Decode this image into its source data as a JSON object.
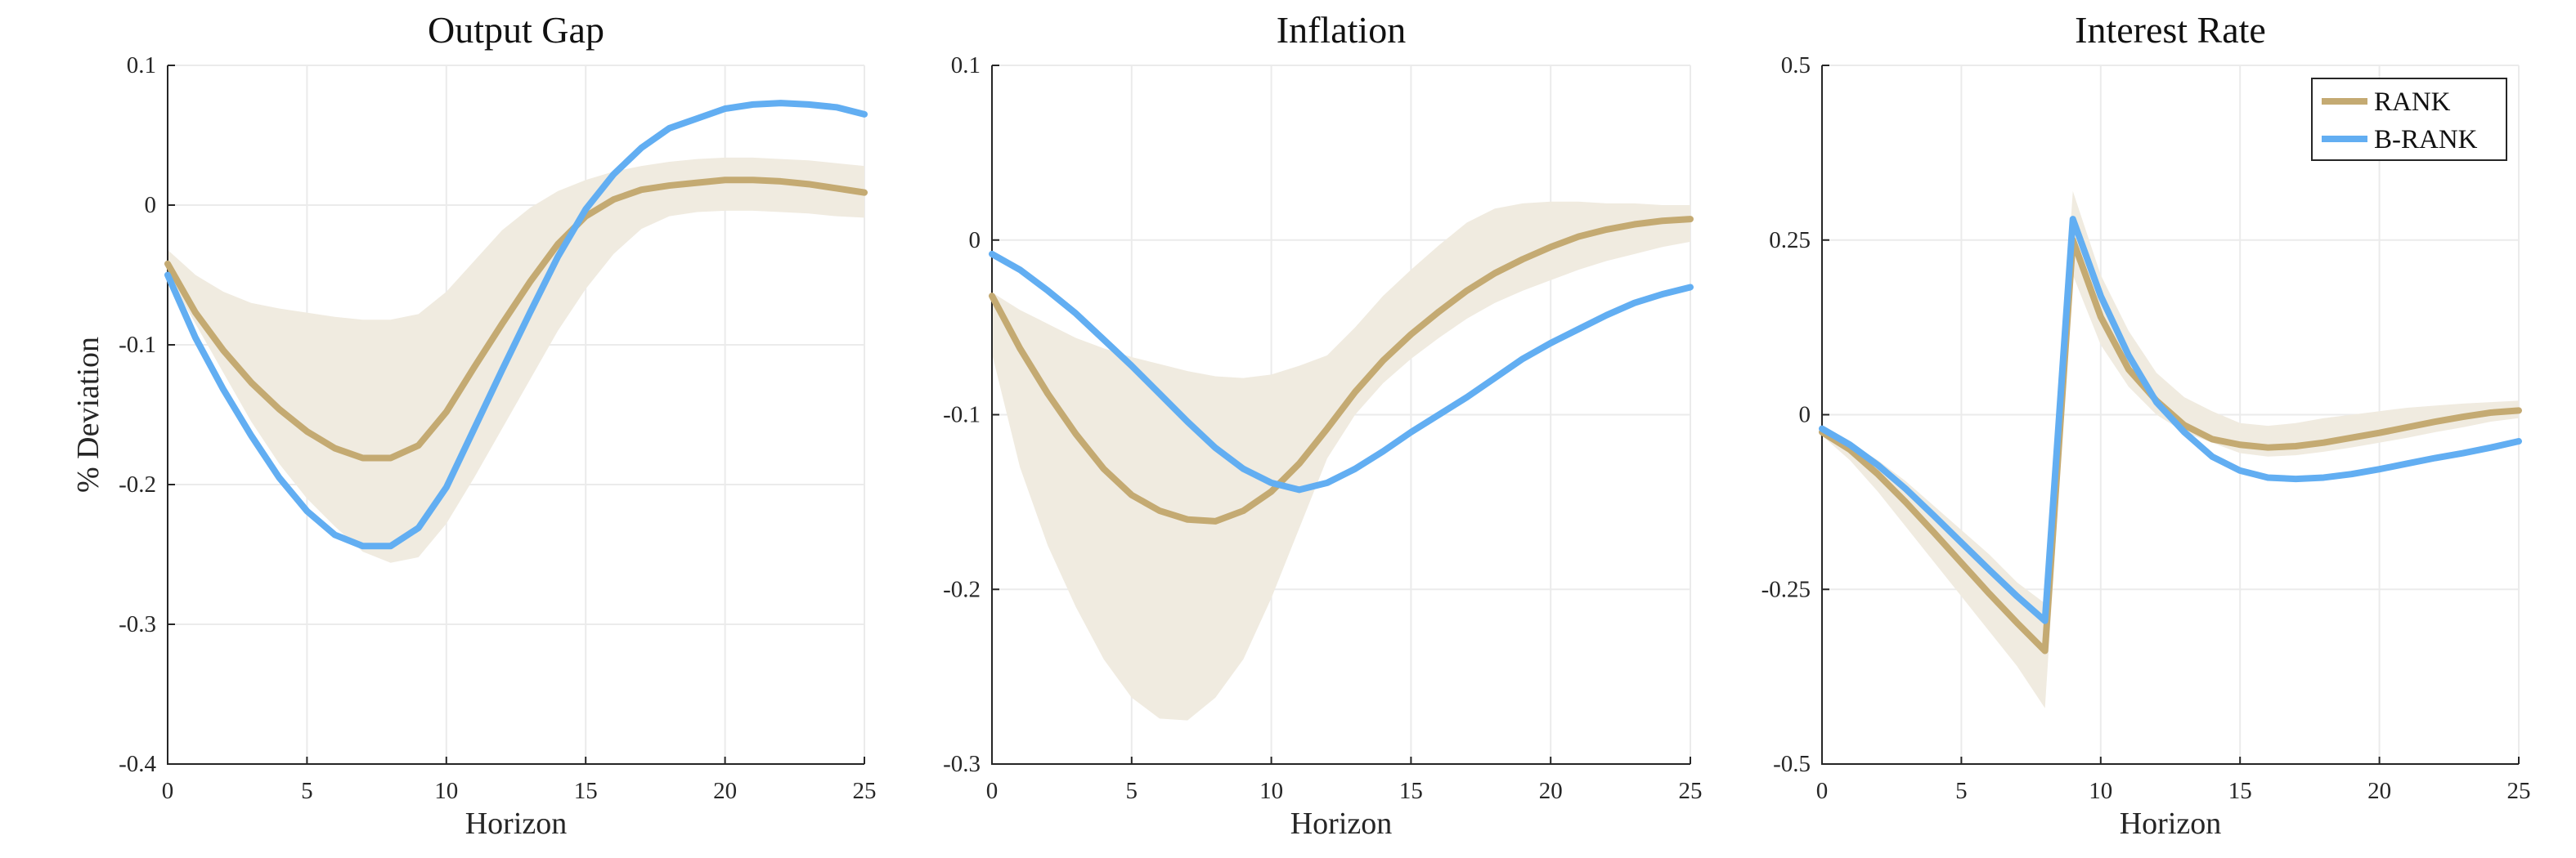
{
  "colors": {
    "rank": "#c4aa72",
    "brank": "#62aef2",
    "band": "#f0ebe0"
  },
  "legend": {
    "items": [
      "RANK",
      "B-RANK"
    ]
  },
  "chart_data": [
    {
      "type": "line",
      "title": "Output Gap",
      "xlabel": "Horizon",
      "ylabel": "% Deviation",
      "xlim": [
        0,
        25
      ],
      "ylim": [
        -0.4,
        0.1
      ],
      "xticks": [
        0,
        5,
        10,
        15,
        20,
        25
      ],
      "yticks": [
        -0.4,
        -0.3,
        -0.2,
        -0.1,
        0,
        0.1
      ],
      "ytick_labels": [
        "-0.4",
        "-0.3",
        "-0.2",
        "-0.1",
        "0",
        "0.1"
      ],
      "grid": true,
      "x": [
        0,
        1,
        2,
        3,
        4,
        5,
        6,
        7,
        8,
        9,
        10,
        11,
        12,
        13,
        14,
        15,
        16,
        17,
        18,
        19,
        20,
        21,
        22,
        23,
        24,
        25
      ],
      "band": {
        "upper": [
          -0.032,
          -0.05,
          -0.062,
          -0.07,
          -0.074,
          -0.077,
          -0.08,
          -0.082,
          -0.082,
          -0.078,
          -0.062,
          -0.04,
          -0.018,
          -0.002,
          0.01,
          0.018,
          0.024,
          0.028,
          0.031,
          0.033,
          0.034,
          0.034,
          0.033,
          0.032,
          0.03,
          0.028
        ],
        "lower": [
          -0.05,
          -0.085,
          -0.12,
          -0.155,
          -0.185,
          -0.21,
          -0.23,
          -0.248,
          -0.256,
          -0.252,
          -0.228,
          -0.195,
          -0.16,
          -0.125,
          -0.09,
          -0.06,
          -0.035,
          -0.017,
          -0.008,
          -0.005,
          -0.004,
          -0.004,
          -0.005,
          -0.006,
          -0.008,
          -0.009
        ]
      },
      "series": [
        {
          "name": "RANK",
          "values": [
            -0.042,
            -0.077,
            -0.104,
            -0.127,
            -0.146,
            -0.162,
            -0.174,
            -0.181,
            -0.181,
            -0.172,
            -0.148,
            -0.116,
            -0.085,
            -0.055,
            -0.028,
            -0.008,
            0.004,
            0.011,
            0.014,
            0.016,
            0.018,
            0.018,
            0.017,
            0.015,
            0.012,
            0.009
          ]
        },
        {
          "name": "B-RANK",
          "values": [
            -0.05,
            -0.095,
            -0.132,
            -0.165,
            -0.195,
            -0.219,
            -0.236,
            -0.244,
            -0.244,
            -0.231,
            -0.202,
            -0.16,
            -0.118,
            -0.077,
            -0.037,
            -0.003,
            0.022,
            0.041,
            0.055,
            0.062,
            0.069,
            0.072,
            0.073,
            0.072,
            0.07,
            0.065
          ]
        }
      ]
    },
    {
      "type": "line",
      "title": "Inflation",
      "xlabel": "Horizon",
      "ylabel": "",
      "xlim": [
        0,
        25
      ],
      "ylim": [
        -0.3,
        0.1
      ],
      "xticks": [
        0,
        5,
        10,
        15,
        20,
        25
      ],
      "yticks": [
        -0.3,
        -0.2,
        -0.1,
        0,
        0.1
      ],
      "ytick_labels": [
        "-0.3",
        "-0.2",
        "-0.1",
        "0",
        "0.1"
      ],
      "grid": true,
      "x": [
        0,
        1,
        2,
        3,
        4,
        5,
        6,
        7,
        8,
        9,
        10,
        11,
        12,
        13,
        14,
        15,
        16,
        17,
        18,
        19,
        20,
        21,
        22,
        23,
        24,
        25
      ],
      "band": {
        "upper": [
          -0.03,
          -0.04,
          -0.048,
          -0.056,
          -0.062,
          -0.067,
          -0.071,
          -0.075,
          -0.078,
          -0.079,
          -0.077,
          -0.072,
          -0.066,
          -0.05,
          -0.032,
          -0.017,
          -0.003,
          0.01,
          0.018,
          0.021,
          0.022,
          0.022,
          0.021,
          0.021,
          0.02,
          0.02
        ],
        "lower": [
          -0.065,
          -0.13,
          -0.175,
          -0.21,
          -0.24,
          -0.262,
          -0.274,
          -0.275,
          -0.262,
          -0.24,
          -0.205,
          -0.165,
          -0.125,
          -0.1,
          -0.082,
          -0.068,
          -0.056,
          -0.045,
          -0.036,
          -0.029,
          -0.023,
          -0.017,
          -0.012,
          -0.008,
          -0.004,
          -0.001
        ]
      },
      "series": [
        {
          "name": "RANK",
          "values": [
            -0.032,
            -0.062,
            -0.088,
            -0.111,
            -0.131,
            -0.146,
            -0.155,
            -0.16,
            -0.161,
            -0.155,
            -0.144,
            -0.128,
            -0.108,
            -0.087,
            -0.069,
            -0.054,
            -0.041,
            -0.029,
            -0.019,
            -0.011,
            -0.004,
            0.002,
            0.006,
            0.009,
            0.011,
            0.012
          ]
        },
        {
          "name": "B-RANK",
          "values": [
            -0.008,
            -0.017,
            -0.029,
            -0.042,
            -0.057,
            -0.072,
            -0.088,
            -0.104,
            -0.119,
            -0.131,
            -0.139,
            -0.143,
            -0.139,
            -0.131,
            -0.121,
            -0.11,
            -0.1,
            -0.09,
            -0.079,
            -0.068,
            -0.059,
            -0.051,
            -0.043,
            -0.036,
            -0.031,
            -0.027
          ]
        }
      ]
    },
    {
      "type": "line",
      "title": "Interest Rate",
      "xlabel": "Horizon",
      "ylabel": "",
      "xlim": [
        0,
        25
      ],
      "ylim": [
        -0.5,
        0.5
      ],
      "xticks": [
        0,
        5,
        10,
        15,
        20,
        25
      ],
      "yticks": [
        -0.5,
        -0.25,
        0,
        0.25,
        0.5
      ],
      "ytick_labels": [
        "-0.5",
        "-0.25",
        "0",
        "0.25",
        "0.5"
      ],
      "grid": true,
      "legend_position": "top-right",
      "x": [
        0,
        1,
        2,
        3,
        4,
        5,
        6,
        7,
        8,
        9,
        10,
        11,
        12,
        13,
        14,
        15,
        16,
        17,
        18,
        19,
        20,
        21,
        22,
        23,
        24,
        25
      ],
      "band": {
        "upper": [
          -0.02,
          -0.04,
          -0.065,
          -0.095,
          -0.13,
          -0.165,
          -0.2,
          -0.24,
          -0.27,
          0.32,
          0.2,
          0.12,
          0.06,
          0.025,
          0.005,
          -0.012,
          -0.016,
          -0.012,
          -0.005,
          0.0,
          0.005,
          0.01,
          0.013,
          0.016,
          0.018,
          0.02
        ],
        "lower": [
          -0.03,
          -0.065,
          -0.11,
          -0.16,
          -0.21,
          -0.26,
          -0.31,
          -0.36,
          -0.42,
          0.2,
          0.1,
          0.04,
          0.0,
          -0.025,
          -0.04,
          -0.055,
          -0.06,
          -0.058,
          -0.053,
          -0.047,
          -0.04,
          -0.033,
          -0.025,
          -0.018,
          -0.01,
          -0.005
        ]
      },
      "series": [
        {
          "name": "RANK",
          "values": [
            -0.025,
            -0.05,
            -0.085,
            -0.125,
            -0.168,
            -0.212,
            -0.256,
            -0.298,
            -0.338,
            0.25,
            0.14,
            0.065,
            0.02,
            -0.015,
            -0.035,
            -0.043,
            -0.047,
            -0.045,
            -0.04,
            -0.033,
            -0.026,
            -0.018,
            -0.01,
            -0.003,
            0.003,
            0.006
          ]
        },
        {
          "name": "B-RANK",
          "values": [
            -0.02,
            -0.043,
            -0.072,
            -0.106,
            -0.144,
            -0.183,
            -0.222,
            -0.26,
            -0.295,
            0.28,
            0.17,
            0.085,
            0.018,
            -0.025,
            -0.06,
            -0.08,
            -0.09,
            -0.092,
            -0.09,
            -0.085,
            -0.078,
            -0.07,
            -0.062,
            -0.055,
            -0.047,
            -0.038
          ]
        }
      ]
    }
  ]
}
